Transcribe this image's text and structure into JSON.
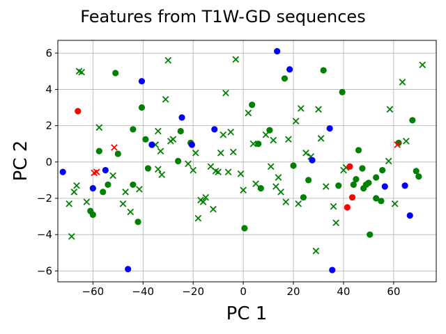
{
  "chart_data": {
    "type": "scatter",
    "title": "Features from T1W-GD sequences",
    "xlabel": "PC 1",
    "ylabel": "PC 2",
    "xlim": [
      -74,
      77
    ],
    "ylim": [
      -6.6,
      6.7
    ],
    "xticks": [
      -60,
      -40,
      -20,
      0,
      20,
      40,
      60
    ],
    "yticks": [
      -6,
      -4,
      -2,
      0,
      2,
      4,
      6
    ],
    "grid": true,
    "series": [
      {
        "color": "#008000",
        "marker": "circle",
        "points": [
          [
            -51,
            4.9
          ],
          [
            -40.5,
            3.0
          ],
          [
            -39,
            1.25
          ],
          [
            -44,
            1.8
          ],
          [
            -25,
            1.7
          ],
          [
            -21,
            1.05
          ],
          [
            -26,
            0.05
          ],
          [
            -38,
            -0.35
          ],
          [
            -50,
            0.45
          ],
          [
            -57.5,
            0.6
          ],
          [
            -56,
            -1.65
          ],
          [
            -54,
            -1.25
          ],
          [
            -61,
            -2.7
          ],
          [
            -60,
            -2.9
          ],
          [
            -44,
            -1.25
          ],
          [
            -42,
            -3.3
          ],
          [
            0.5,
            -3.65
          ],
          [
            3.5,
            3.15
          ],
          [
            6,
            1.0
          ],
          [
            10.5,
            1.75
          ],
          [
            7,
            -1.45
          ],
          [
            16.5,
            4.6
          ],
          [
            20,
            -0.2
          ],
          [
            26,
            -1.0
          ],
          [
            24,
            -1.95
          ],
          [
            32,
            5.05
          ],
          [
            39.5,
            3.85
          ],
          [
            38,
            -1.3
          ],
          [
            44,
            -1.25
          ],
          [
            45,
            -0.95
          ],
          [
            46,
            0.65
          ],
          [
            47.5,
            -0.35
          ],
          [
            48,
            -1.45
          ],
          [
            50,
            -1.15
          ],
          [
            49,
            -1.25
          ],
          [
            53,
            -2.0
          ],
          [
            53,
            -0.85
          ],
          [
            55,
            -2.15
          ],
          [
            55.5,
            -0.45
          ],
          [
            50.5,
            -4.0
          ],
          [
            62,
            1.05
          ],
          [
            67.5,
            2.3
          ],
          [
            69,
            -0.5
          ],
          [
            70,
            -0.8
          ]
        ]
      },
      {
        "color": "#008000",
        "marker": "x",
        "points": [
          [
            -65.5,
            5.0
          ],
          [
            -64.5,
            4.95
          ],
          [
            -57.5,
            1.9
          ],
          [
            -52,
            -0.75
          ],
          [
            -47,
            -1.65
          ],
          [
            -48,
            -2.3
          ],
          [
            -45,
            -2.75
          ],
          [
            -41.5,
            -1.5
          ],
          [
            -34,
            1.7
          ],
          [
            -35,
            0.95
          ],
          [
            -33,
            0.6
          ],
          [
            -34,
            -0.4
          ],
          [
            -32.5,
            -0.7
          ],
          [
            -30,
            5.6
          ],
          [
            -31,
            3.45
          ],
          [
            -29,
            1.15
          ],
          [
            -28,
            1.25
          ],
          [
            -22,
            -0.1
          ],
          [
            -20,
            -0.45
          ],
          [
            -19,
            0.5
          ],
          [
            -18,
            -3.1
          ],
          [
            -17,
            -2.1
          ],
          [
            -16,
            -2.2
          ],
          [
            -15,
            -1.95
          ],
          [
            -13,
            -0.25
          ],
          [
            -12,
            -2.6
          ],
          [
            -11,
            -0.5
          ],
          [
            -10,
            -0.55
          ],
          [
            -9,
            0.5
          ],
          [
            -8,
            1.5
          ],
          [
            -7,
            3.8
          ],
          [
            -6,
            -0.55
          ],
          [
            -5,
            1.65
          ],
          [
            -4,
            0.55
          ],
          [
            -3,
            5.65
          ],
          [
            -1,
            -0.65
          ],
          [
            0,
            -1.55
          ],
          [
            2,
            2.7
          ],
          [
            4,
            1.0
          ],
          [
            5,
            -1.2
          ],
          [
            9,
            1.5
          ],
          [
            11,
            -0.25
          ],
          [
            12,
            1.2
          ],
          [
            13,
            -1.35
          ],
          [
            14,
            -0.85
          ],
          [
            15,
            -1.65
          ],
          [
            17,
            -2.2
          ],
          [
            18,
            1.25
          ],
          [
            21,
            2.25
          ],
          [
            22,
            -2.3
          ],
          [
            23,
            2.95
          ],
          [
            25,
            0.5
          ],
          [
            27,
            0.3
          ],
          [
            29,
            -4.9
          ],
          [
            30,
            2.9
          ],
          [
            31,
            1.3
          ],
          [
            33,
            -1.35
          ],
          [
            36,
            -2.45
          ],
          [
            37,
            -3.35
          ],
          [
            40,
            -0.45
          ],
          [
            41,
            -0.3
          ],
          [
            58,
            0.05
          ],
          [
            58.5,
            2.9
          ],
          [
            60.5,
            -2.3
          ],
          [
            63.5,
            4.4
          ],
          [
            65,
            1.15
          ],
          [
            71.5,
            5.35
          ],
          [
            -69.5,
            -2.3
          ],
          [
            -68.5,
            -4.1
          ],
          [
            -67.5,
            -1.65
          ],
          [
            -66.5,
            -1.3
          ],
          [
            -62.5,
            -2.2
          ]
        ]
      },
      {
        "color": "#0000ff",
        "marker": "circle",
        "points": [
          [
            -72,
            -0.55
          ],
          [
            -60,
            -1.45
          ],
          [
            -55,
            -0.45
          ],
          [
            -46,
            -5.9
          ],
          [
            -40.5,
            4.45
          ],
          [
            -36.5,
            0.95
          ],
          [
            -24.5,
            2.45
          ],
          [
            -20.5,
            0.95
          ],
          [
            -11.5,
            1.8
          ],
          [
            13.5,
            6.1
          ],
          [
            18.5,
            5.1
          ],
          [
            27.5,
            0.1
          ],
          [
            34.5,
            1.85
          ],
          [
            35.5,
            -5.95
          ],
          [
            56.5,
            -1.35
          ],
          [
            64.5,
            -1.3
          ],
          [
            66.5,
            -2.95
          ]
        ]
      },
      {
        "color": "#ff0000",
        "marker": "circle",
        "points": [
          [
            -66,
            2.8
          ],
          [
            41.5,
            -2.5
          ],
          [
            42.5,
            -0.25
          ],
          [
            43.5,
            -1.95
          ]
        ]
      },
      {
        "color": "#ff0000",
        "marker": "x",
        "points": [
          [
            -59.5,
            -0.6
          ],
          [
            -58.5,
            -0.55
          ],
          [
            -51.5,
            0.8
          ],
          [
            61.5,
            0.95
          ]
        ]
      }
    ]
  }
}
